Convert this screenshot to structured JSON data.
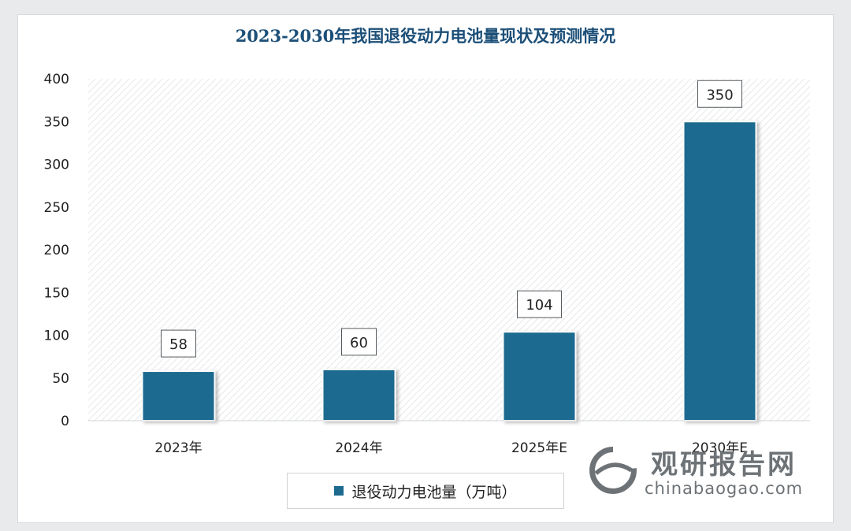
{
  "chart_data": {
    "type": "bar",
    "title": "2023-2030年我国退役动力电池量现状及预测情况",
    "categories": [
      "2023年",
      "2024年",
      "2025年E",
      "2030年E"
    ],
    "series": [
      {
        "name": "退役动力电池量（万吨）",
        "values": [
          58,
          60,
          104,
          350
        ]
      }
    ],
    "ylim": [
      0,
      400
    ],
    "yticks": [
      0,
      50,
      100,
      150,
      200,
      250,
      300,
      350,
      400
    ],
    "xlabel": "",
    "ylabel": "",
    "legend_position": "bottom-center",
    "grid": false
  },
  "colors": {
    "bar": "#1d6a8f",
    "title": "#1c4f78"
  },
  "watermark": {
    "brand_cn": "观研报告网",
    "brand_en": "chinabaogao.com"
  }
}
